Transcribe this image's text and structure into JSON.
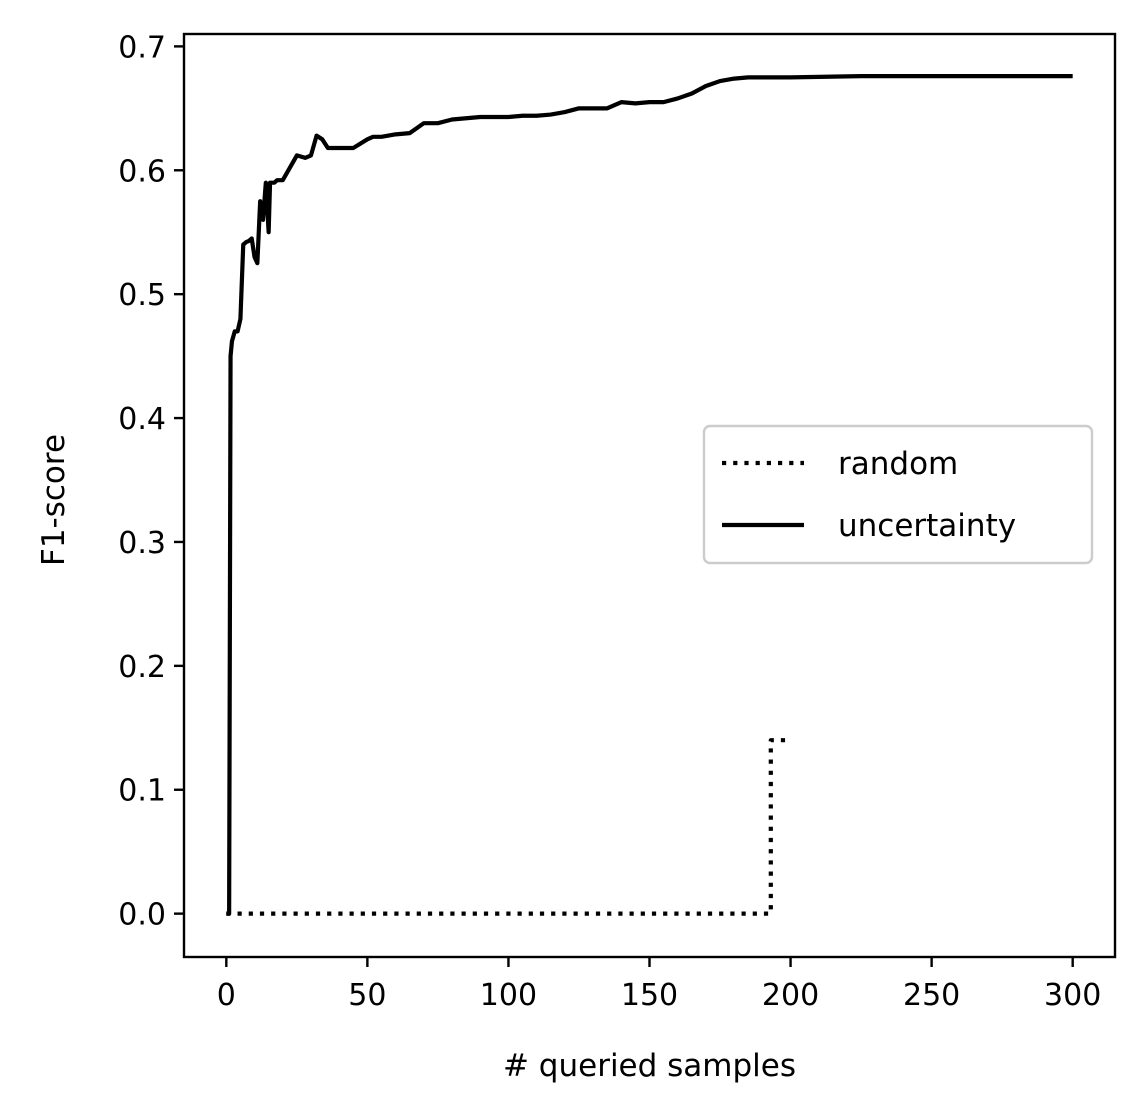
{
  "chart_data": {
    "type": "line",
    "title": "",
    "xlabel": "# queried samples",
    "ylabel": "F1-score",
    "xlim": [
      -15,
      315
    ],
    "ylim": [
      -0.035,
      0.71
    ],
    "xticks": [
      0,
      50,
      100,
      150,
      200,
      250,
      300
    ],
    "yticks": [
      0.0,
      0.1,
      0.2,
      0.3,
      0.4,
      0.5,
      0.6,
      0.7
    ],
    "x_tick_labels": [
      "0",
      "50",
      "100",
      "150",
      "200",
      "250",
      "300"
    ],
    "y_tick_labels": [
      "0.0",
      "0.1",
      "0.2",
      "0.3",
      "0.4",
      "0.5",
      "0.6",
      "0.7"
    ],
    "grid": false,
    "legend_position": "center-right",
    "series": [
      {
        "name": "random",
        "style": "dotted",
        "color": "#000000",
        "x": [
          0,
          10,
          50,
          100,
          150,
          190,
          193,
          193,
          195,
          200
        ],
        "y": [
          0.0,
          0.0,
          0.0,
          0.0,
          0.0,
          0.0,
          0.0,
          0.14,
          0.14,
          0.14
        ]
      },
      {
        "name": "uncertainty",
        "style": "solid",
        "color": "#000000",
        "x": [
          0,
          1,
          1.5,
          2,
          3,
          4,
          5,
          6,
          7,
          8,
          9,
          10,
          11,
          12,
          13,
          14,
          15,
          15.5,
          16,
          17,
          18,
          20,
          22,
          25,
          28,
          30,
          32,
          34,
          36,
          38,
          40,
          45,
          50,
          52,
          55,
          60,
          65,
          70,
          75,
          80,
          90,
          100,
          105,
          110,
          115,
          120,
          125,
          130,
          135,
          140,
          145,
          150,
          155,
          160,
          165,
          170,
          175,
          180,
          185,
          190,
          200,
          225,
          250,
          300
        ],
        "y": [
          0.0,
          0.0,
          0.45,
          0.462,
          0.47,
          0.47,
          0.48,
          0.54,
          0.542,
          0.543,
          0.545,
          0.53,
          0.525,
          0.575,
          0.56,
          0.59,
          0.55,
          0.59,
          0.59,
          0.59,
          0.592,
          0.592,
          0.6,
          0.612,
          0.61,
          0.612,
          0.628,
          0.625,
          0.618,
          0.618,
          0.618,
          0.618,
          0.625,
          0.627,
          0.627,
          0.629,
          0.63,
          0.638,
          0.638,
          0.641,
          0.643,
          0.643,
          0.644,
          0.644,
          0.645,
          0.647,
          0.65,
          0.65,
          0.65,
          0.655,
          0.654,
          0.655,
          0.655,
          0.658,
          0.662,
          0.668,
          0.672,
          0.674,
          0.675,
          0.675,
          0.675,
          0.676,
          0.676,
          0.676
        ]
      }
    ]
  }
}
